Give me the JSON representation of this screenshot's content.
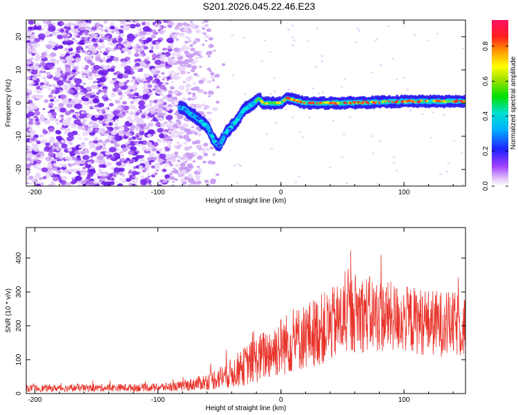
{
  "title": "S201.2026.045.22.46.E23",
  "chart_data": [
    {
      "type": "heatmap",
      "name": "spectrogram",
      "xlabel": "Height of straight line (km)",
      "ylabel": "Frequency (Hz)",
      "xlim": [
        -207,
        150
      ],
      "ylim": [
        -25,
        25
      ],
      "xticks": [
        -200,
        -100,
        0,
        100
      ],
      "yticks": [
        -20,
        -10,
        0,
        10,
        20
      ],
      "colorbar": {
        "label": "Normalized spectral amplitude",
        "range": [
          0,
          0.95
        ],
        "ticks": [
          0.0,
          0.2,
          0.4,
          0.6,
          0.8
        ],
        "tick_labels": [
          "0.0",
          "0.2",
          "0.4",
          "0.6",
          "0.8"
        ]
      },
      "ridge": {
        "x": [
          -80,
          -70,
          -60,
          -55,
          -50,
          -45,
          -40,
          -35,
          -30,
          -22,
          -18,
          -15,
          0,
          5,
          20,
          50,
          100,
          150
        ],
        "y": [
          -1.5,
          -4,
          -7,
          -11,
          -13,
          -9,
          -7,
          -5,
          -2,
          0,
          1.5,
          0,
          0,
          1.5,
          0,
          0,
          0.5,
          0.5
        ]
      }
    },
    {
      "type": "line",
      "name": "snr",
      "xlabel": "Height of straight line (km)",
      "ylabel": "SNR (10 * v/v)",
      "xlim": [
        -207,
        150
      ],
      "ylim": [
        0,
        490
      ],
      "xticks": [
        -200,
        -100,
        0,
        100
      ],
      "yticks": [
        0,
        100,
        200,
        300,
        400
      ],
      "color": "#e8332a",
      "envelope": {
        "x": [
          -207,
          -100,
          -80,
          -60,
          -40,
          -20,
          0,
          20,
          40,
          60,
          80,
          100,
          120,
          150
        ],
        "mean": [
          15,
          18,
          22,
          35,
          60,
          100,
          140,
          170,
          200,
          240,
          230,
          220,
          210,
          200
        ],
        "amp": [
          10,
          12,
          15,
          25,
          45,
          70,
          90,
          100,
          110,
          120,
          110,
          100,
          100,
          95
        ]
      }
    }
  ]
}
